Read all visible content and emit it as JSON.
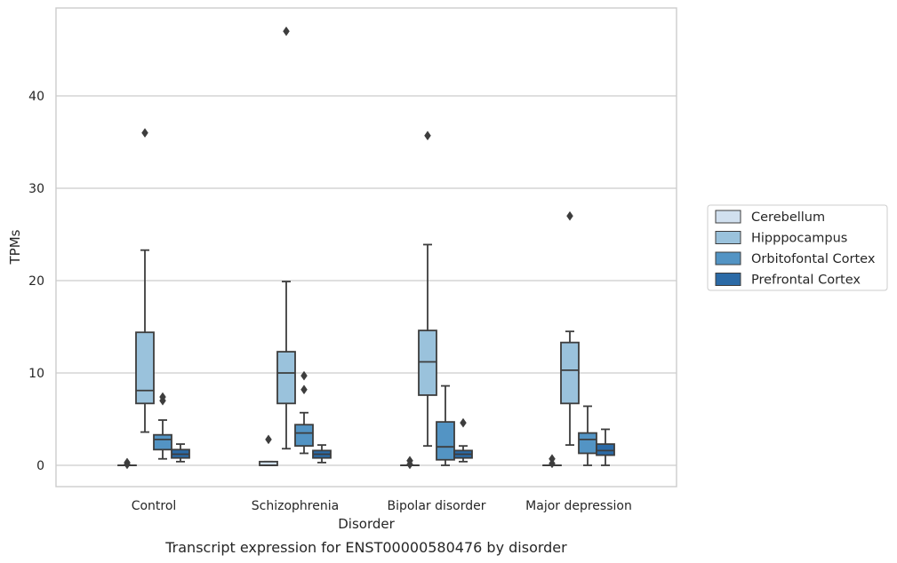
{
  "caption": "Transcript expression for ENST00000580476 by disorder",
  "chart_data": {
    "type": "boxplot",
    "xlabel": "Disorder",
    "ylabel": "TPMs",
    "ylim": [
      -2.3,
      49.5
    ],
    "yticks": [
      0,
      10,
      20,
      30,
      40
    ],
    "grid": "horizontal",
    "legend_position": "right",
    "categories": [
      "Control",
      "Schizophrenia",
      "Bipolar disorder",
      "Major depression"
    ],
    "series": [
      {
        "name": "Cerebellum",
        "color": "#d1e0ef",
        "boxes": [
          {
            "min": 0,
            "q1": 0,
            "median": 0,
            "q3": 0,
            "max": 0,
            "outliers": [
              0.1,
              0.3
            ]
          },
          {
            "min": 0,
            "q1": 0,
            "median": 0,
            "q3": 0.4,
            "max": 0.4,
            "outliers": [
              2.8
            ]
          },
          {
            "min": 0,
            "q1": 0,
            "median": 0,
            "q3": 0,
            "max": 0,
            "outliers": [
              0.1,
              0.5
            ]
          },
          {
            "min": 0,
            "q1": 0,
            "median": 0,
            "q3": 0,
            "max": 0,
            "outliers": [
              0.2,
              0.7
            ]
          }
        ]
      },
      {
        "name": "Hipppocampus",
        "color": "#9ac2dc",
        "boxes": [
          {
            "min": 3.6,
            "q1": 6.7,
            "median": 8.1,
            "q3": 14.4,
            "max": 23.3,
            "outliers": [
              36
            ]
          },
          {
            "min": 1.8,
            "q1": 6.7,
            "median": 10.0,
            "q3": 12.3,
            "max": 19.9,
            "outliers": [
              47
            ]
          },
          {
            "min": 2.1,
            "q1": 7.6,
            "median": 11.2,
            "q3": 14.6,
            "max": 23.9,
            "outliers": [
              35.7
            ]
          },
          {
            "min": 2.2,
            "q1": 6.7,
            "median": 10.3,
            "q3": 13.3,
            "max": 14.5,
            "outliers": [
              27
            ]
          }
        ]
      },
      {
        "name": "Orbitofontal Cortex",
        "color": "#5394c4",
        "boxes": [
          {
            "min": 0.7,
            "q1": 1.7,
            "median": 2.8,
            "q3": 3.3,
            "max": 4.9,
            "outliers": [
              7.0,
              7.4
            ]
          },
          {
            "min": 1.3,
            "q1": 2.1,
            "median": 3.5,
            "q3": 4.4,
            "max": 5.7,
            "outliers": [
              8.2,
              9.7
            ]
          },
          {
            "min": 0,
            "q1": 0.6,
            "median": 2.0,
            "q3": 4.7,
            "max": 8.6,
            "outliers": []
          },
          {
            "min": 0,
            "q1": 1.3,
            "median": 2.8,
            "q3": 3.5,
            "max": 6.4,
            "outliers": []
          }
        ]
      },
      {
        "name": "Prefrontal Cortex",
        "color": "#2b6aa6",
        "boxes": [
          {
            "min": 0.4,
            "q1": 0.8,
            "median": 1.2,
            "q3": 1.7,
            "max": 2.3,
            "outliers": []
          },
          {
            "min": 0.3,
            "q1": 0.8,
            "median": 1.2,
            "q3": 1.6,
            "max": 2.2,
            "outliers": []
          },
          {
            "min": 0.4,
            "q1": 0.8,
            "median": 1.2,
            "q3": 1.6,
            "max": 2.1,
            "outliers": [
              4.6
            ]
          },
          {
            "min": 0,
            "q1": 1.1,
            "median": 1.6,
            "q3": 2.3,
            "max": 3.9,
            "outliers": []
          }
        ]
      }
    ]
  }
}
